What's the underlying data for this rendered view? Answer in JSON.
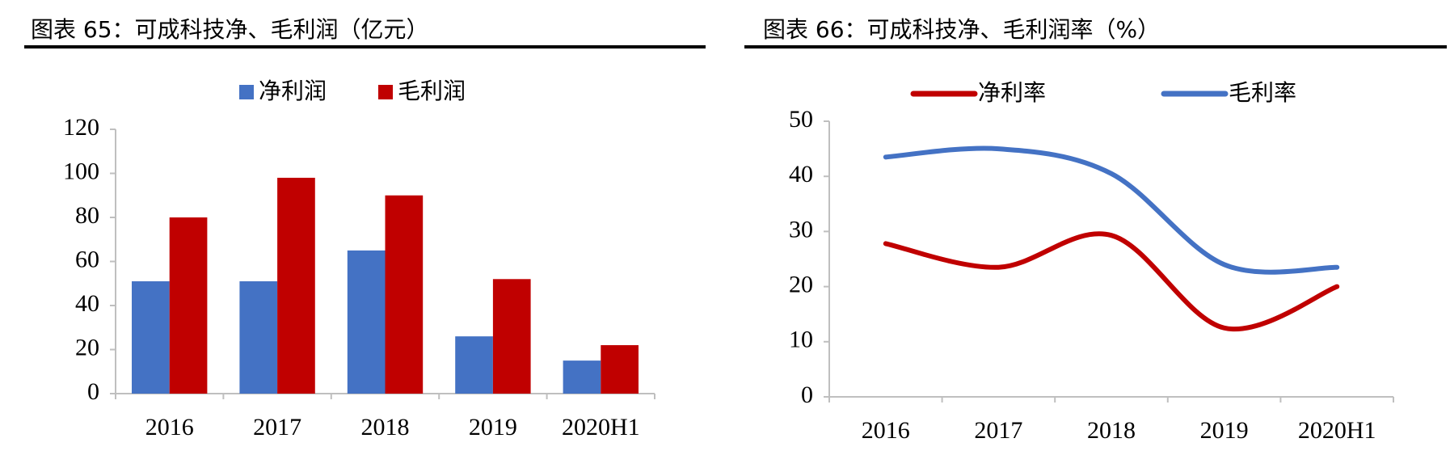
{
  "chart_data": [
    {
      "type": "bar",
      "title": "图表 65：可成科技净、毛利润（亿元）",
      "categories": [
        "2016",
        "2017",
        "2018",
        "2019",
        "2020H1"
      ],
      "series": [
        {
          "name": "净利润",
          "color": "#4472c4",
          "values": [
            51,
            51,
            65,
            26,
            15
          ]
        },
        {
          "name": "毛利润",
          "color": "#c00000",
          "values": [
            80,
            98,
            90,
            52,
            22
          ]
        }
      ],
      "ylim": [
        0,
        120
      ],
      "yticks": [
        0,
        20,
        40,
        60,
        80,
        100,
        120
      ],
      "grid": false,
      "legend": "top"
    },
    {
      "type": "line",
      "title": "图表 66：可成科技净、毛利润率（%）",
      "categories": [
        "2016",
        "2017",
        "2018",
        "2019",
        "2020H1"
      ],
      "series": [
        {
          "name": "净利率",
          "color": "#c00000",
          "values": [
            27.8,
            23.5,
            29.3,
            12.5,
            20
          ]
        },
        {
          "name": "毛利率",
          "color": "#4472c4",
          "values": [
            43.5,
            45,
            40.5,
            24,
            23.5
          ]
        }
      ],
      "ylim": [
        0,
        50
      ],
      "yticks": [
        0,
        10,
        20,
        30,
        40,
        50
      ],
      "grid": false,
      "legend": "top",
      "smooth": true
    }
  ]
}
